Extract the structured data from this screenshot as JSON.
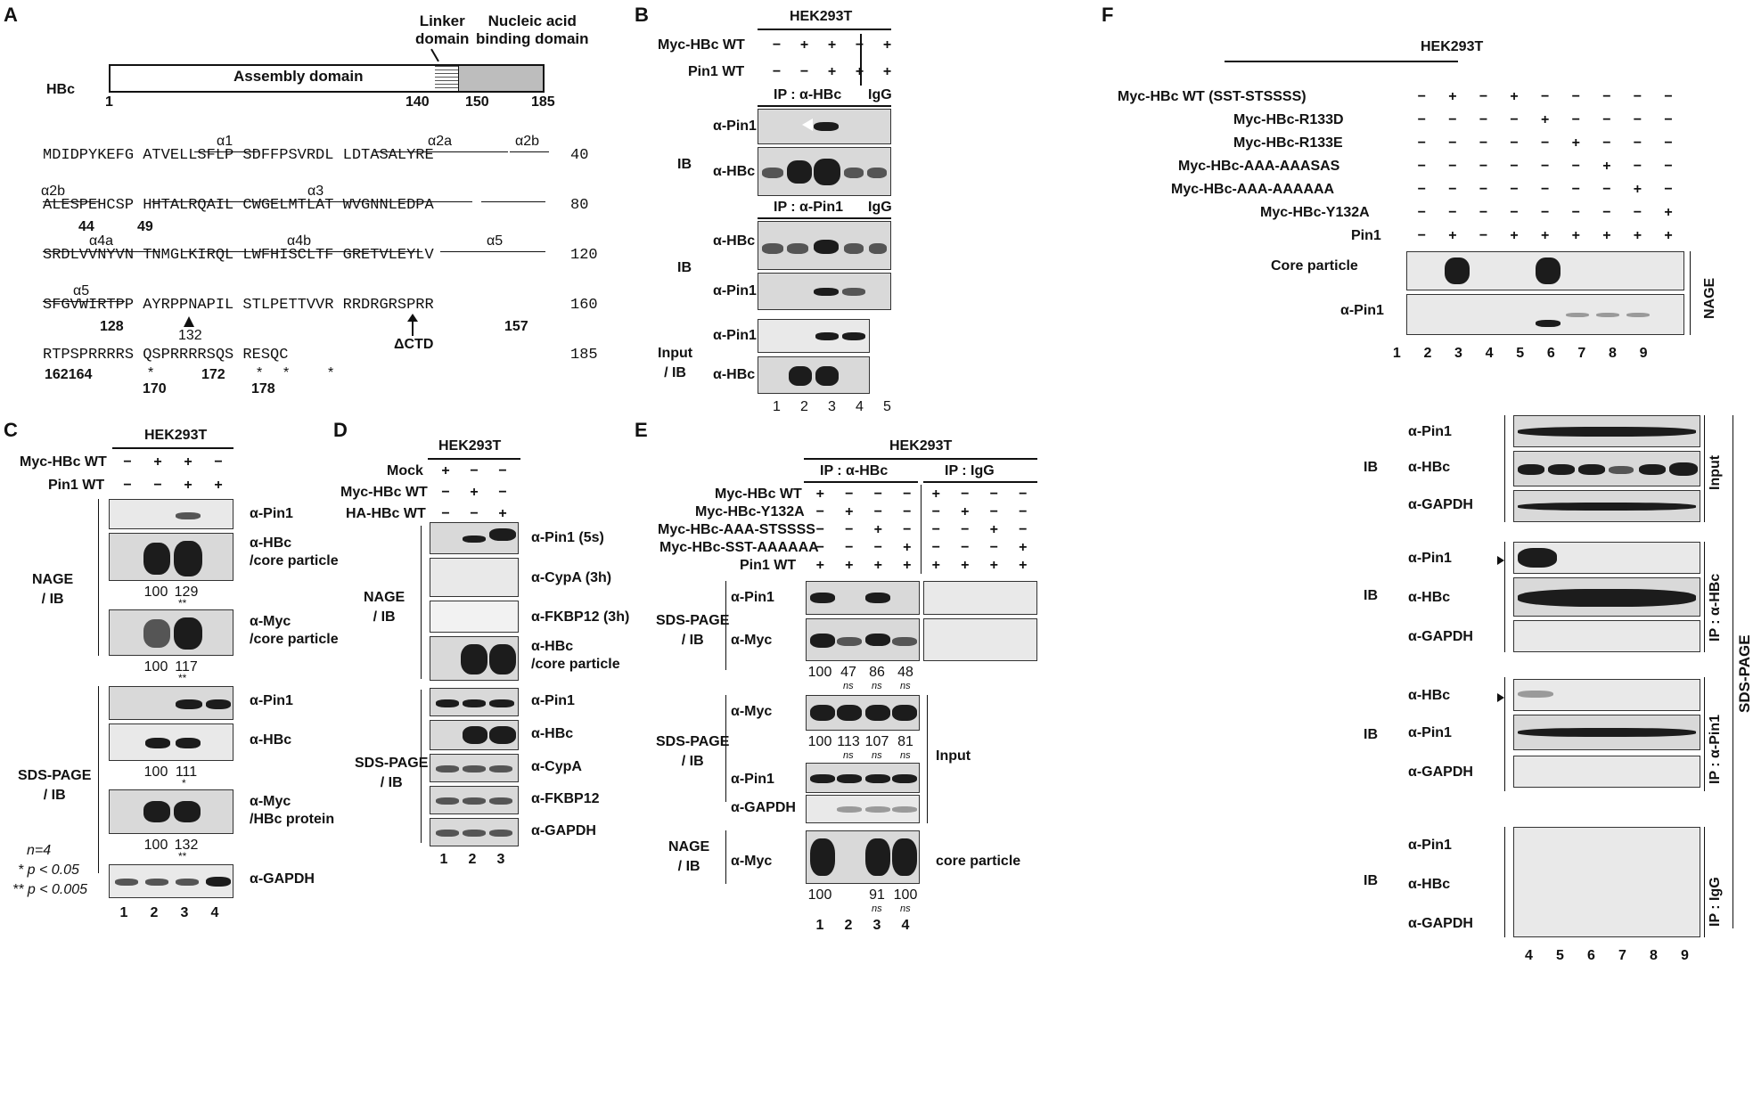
{
  "panels": {
    "A": {
      "letter": "A",
      "hbc_label": "HBc",
      "assembly_domain": "Assembly domain",
      "linker_domain": [
        "Linker",
        "domain"
      ],
      "nucleic_domain": [
        "Nucleic acid",
        "binding domain"
      ],
      "pos_1": "1",
      "pos_140": "140",
      "pos_150": "150",
      "pos_185": "185",
      "seq_lines": [
        "MDIDPYKEFG ATVELLSFLP SDFFPSVRDL LDTASALYRE",
        "ALESPEHCSP HHTALRQAIL CWGELMTLAT WVGNNLEDPA",
        "SRDLVVNYVN TNMGLKIRQL LWFHISCLTF GRETVLEYLV",
        "SFGVWIRTPP AYRPPNAPIL STLPETTVVR RRDRGRSPRR",
        "RTPSPRRRRS QSPRRRRSQS RESQC"
      ],
      "seq_ends": [
        "40",
        "80",
        "120",
        "160",
        "185"
      ],
      "helices": [
        "α1",
        "α2a",
        "α2b",
        "α2b",
        "α3",
        "α4a",
        "α4b",
        "α5",
        "α5"
      ],
      "sites": [
        "44",
        "49",
        "128",
        "157",
        "162164",
        "170",
        "172",
        "178"
      ],
      "mark_132": "132",
      "mark_ctd": "ΔCTD",
      "asterisk": "*"
    },
    "B": {
      "letter": "B",
      "cell": "HEK293T",
      "row_labels": [
        "Myc-HBc  WT",
        "Pin1 WT"
      ],
      "row_signs": [
        [
          "−",
          "+",
          "+",
          "−",
          "+"
        ],
        [
          "−",
          "−",
          "+",
          "+",
          "+"
        ]
      ],
      "ip1": "IP : α-HBc",
      "ip2": "IP : α-Pin1",
      "igg": "IgG",
      "ib": "IB",
      "input_ib": [
        "Input",
        "/ IB"
      ],
      "blots": [
        "α-Pin1",
        "α-HBc",
        "α-HBc",
        "α-Pin1",
        "α-Pin1",
        "α-HBc"
      ],
      "lanes": [
        "1",
        "2",
        "3",
        "4",
        "5"
      ]
    },
    "C": {
      "letter": "C",
      "cell": "HEK293T",
      "row_labels": [
        "Myc-HBc  WT",
        "Pin1 WT"
      ],
      "row_signs": [
        [
          "−",
          "+",
          "+",
          "−"
        ],
        [
          "−",
          "−",
          "+",
          "+"
        ]
      ],
      "nage": [
        "NAGE",
        "/ IB"
      ],
      "sds": [
        "SDS-PAGE",
        "/ IB"
      ],
      "blots": [
        "α-Pin1",
        "α-HBc",
        "/core particle",
        "α-Myc",
        "/core particle",
        "α-Pin1",
        "α-HBc",
        "α-Myc",
        "/HBc protein",
        "α-GAPDH"
      ],
      "quant": [
        [
          "100",
          "129"
        ],
        [
          "100",
          "117"
        ],
        [
          "100",
          "111"
        ],
        [
          "100",
          "132"
        ]
      ],
      "sig": [
        "**",
        "**",
        "*",
        "**"
      ],
      "stats": [
        "n=4",
        "* p < 0.05",
        "** p < 0.005"
      ],
      "lanes": [
        "1",
        "2",
        "3",
        "4"
      ]
    },
    "D": {
      "letter": "D",
      "cell": "HEK293T",
      "row_labels": [
        "Mock",
        "Myc-HBc  WT",
        "HA-HBc  WT"
      ],
      "row_signs": [
        [
          "+",
          "−",
          "−"
        ],
        [
          "−",
          "+",
          "−"
        ],
        [
          "−",
          "−",
          "+"
        ]
      ],
      "nage": [
        "NAGE",
        "/ IB"
      ],
      "sds": [
        "SDS-PAGE",
        "/ IB"
      ],
      "blots": [
        "α-Pin1 (5s)",
        "α-CypA (3h)",
        "α-FKBP12 (3h)",
        "α-HBc",
        "/core particle",
        "α-Pin1",
        "α-HBc",
        "α-CypA",
        "α-FKBP12",
        "α-GAPDH"
      ],
      "lanes": [
        "1",
        "2",
        "3"
      ]
    },
    "E": {
      "letter": "E",
      "cell": "HEK293T",
      "ip1": "IP : α-HBc",
      "ip2": "IP : IgG",
      "row_labels": [
        "Myc-HBc  WT",
        "Myc-HBc-Y132A",
        "Myc-HBc-AAA-STSSSS",
        "Myc-HBc-SST-AAAAAA",
        "Pin1 WT"
      ],
      "row_signs": [
        [
          "+",
          "−",
          "−",
          "−",
          "+",
          "−",
          "−",
          "−"
        ],
        [
          "−",
          "+",
          "−",
          "−",
          "−",
          "+",
          "−",
          "−"
        ],
        [
          "−",
          "−",
          "+",
          "−",
          "−",
          "−",
          "+",
          "−"
        ],
        [
          "−",
          "−",
          "−",
          "+",
          "−",
          "−",
          "−",
          "+"
        ],
        [
          "+",
          "+",
          "+",
          "+",
          "+",
          "+",
          "+",
          "+"
        ]
      ],
      "sds1": [
        "SDS-PAGE",
        "/ IB"
      ],
      "sds2": [
        "SDS-PAGE",
        "/ IB"
      ],
      "nage": [
        "NAGE",
        "/ IB"
      ],
      "blots": [
        "α-Pin1",
        "α-Myc",
        "α-Myc",
        "α-Pin1",
        "α-GAPDH",
        "α-Myc"
      ],
      "input": "Input",
      "core": "core particle",
      "quant1": [
        "100",
        "47",
        "86",
        "48"
      ],
      "quant2": [
        "100",
        "113",
        "107",
        "81"
      ],
      "quant3": [
        "100",
        "91",
        "100"
      ],
      "ns": "ns",
      "lanes": [
        "1",
        "2",
        "3",
        "4"
      ]
    },
    "F": {
      "letter": "F",
      "cell": "HEK293T",
      "row_labels": [
        "Myc-HBc  WT (SST-STSSSS)",
        "Myc-HBc-R133D",
        "Myc-HBc-R133E",
        "Myc-HBc-AAA-AAASAS",
        "Myc-HBc-AAA-AAAAAA",
        "Myc-HBc-Y132A",
        "Pin1"
      ],
      "row_signs": [
        [
          "−",
          "+",
          "−",
          "+",
          "−",
          "−",
          "−",
          "−",
          "−"
        ],
        [
          "−",
          "−",
          "−",
          "−",
          "+",
          "−",
          "−",
          "−",
          "−"
        ],
        [
          "−",
          "−",
          "−",
          "−",
          "−",
          "+",
          "−",
          "−",
          "−"
        ],
        [
          "−",
          "−",
          "−",
          "−",
          "−",
          "−",
          "+",
          "−",
          "−"
        ],
        [
          "−",
          "−",
          "−",
          "−",
          "−",
          "−",
          "−",
          "+",
          "−"
        ],
        [
          "−",
          "−",
          "−",
          "−",
          "−",
          "−",
          "−",
          "−",
          "+"
        ],
        [
          "−",
          "+",
          "−",
          "+",
          "+",
          "+",
          "+",
          "+",
          "+"
        ]
      ],
      "nage_blots": [
        "Core particle",
        "α-Pin1"
      ],
      "nage": "NAGE",
      "lanes_top": [
        "1",
        "2",
        "3",
        "4",
        "5",
        "6",
        "7",
        "8",
        "9"
      ],
      "ib": "IB",
      "groups": [
        {
          "tag": "Input",
          "blots": [
            "α-Pin1",
            "α-HBc",
            "α-GAPDH"
          ]
        },
        {
          "tag": "IP : α-HBc",
          "blots": [
            "α-Pin1",
            "α-HBc",
            "α-GAPDH"
          ]
        },
        {
          "tag": "IP : α-Pin1",
          "blots": [
            "α-HBc",
            "α-Pin1",
            "α-GAPDH"
          ]
        },
        {
          "tag": "IP : IgG",
          "blots": [
            "α-Pin1",
            "α-HBc",
            "α-GAPDH"
          ]
        }
      ],
      "sds": "SDS-PAGE",
      "lanes_bottom": [
        "4",
        "5",
        "6",
        "7",
        "8",
        "9"
      ]
    }
  }
}
